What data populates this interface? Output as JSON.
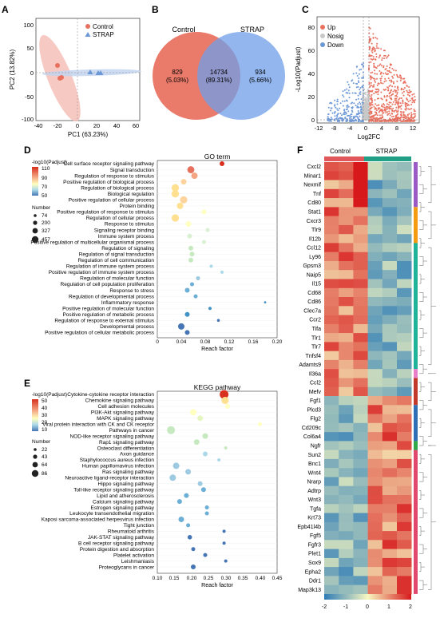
{
  "panels": {
    "A": "A",
    "B": "B",
    "C": "C",
    "D": "D",
    "E": "E",
    "F": "F"
  },
  "pca": {
    "legend": [
      "Control",
      "STRAP"
    ],
    "xlabel": "PC1 (63.23%)",
    "ylabel": "PC2 (13.82%)",
    "xticks": [
      "-40",
      "-20",
      "0",
      "20",
      "40",
      "60"
    ],
    "yticks": [
      "100",
      "50",
      "0",
      "-50",
      "-100"
    ],
    "colors": {
      "control": "#e8705e",
      "strap": "#6c98d8",
      "ellipse_control": "#f6c0b8",
      "ellipse_strap": "#c3d5f0"
    }
  },
  "venn": {
    "left_label": "Control",
    "right_label": "STRAP",
    "left_count": "829",
    "left_pct": "(5.03%)",
    "mid_count": "14734",
    "mid_pct": "(89.31%)",
    "right_count": "934",
    "right_pct": "(5.66%)",
    "colors": {
      "left": "#e8705e",
      "right": "#6f9ee8"
    }
  },
  "volcano": {
    "legend": [
      "Up",
      "Nosig",
      "Down"
    ],
    "ylabel": "-Log10(Padjust)",
    "xlabel": "Log2FC",
    "xticks": [
      "-12",
      "-8",
      "-4",
      "0",
      "4",
      "8",
      "12"
    ],
    "yticks": [
      "0",
      "20",
      "40",
      "60",
      "80"
    ],
    "colors": {
      "up": "#e8705e",
      "nosig": "#c8c8c8",
      "down": "#6c98d8"
    }
  },
  "go": {
    "title": "GO term",
    "xlabel": "Reach factor",
    "xticks": [
      "0",
      "0.04",
      "0.08",
      "0.12",
      "0.16",
      "0.20"
    ],
    "legend_title": "-log10(Padjust)",
    "colorbar_ticks": [
      "110",
      "90",
      "70",
      "50"
    ],
    "size_title": "Number",
    "size_values": [
      "74",
      "200",
      "327",
      "457"
    ],
    "terms": [
      "Cell surface receptor signaling pathway",
      "Signal transduction",
      "Regulation of response to stimulus",
      "Positive regulation of biological process",
      "Regulation of biological process",
      "Biological regulation",
      "Positive regulation of cellular process",
      "Protein binding",
      "Positive regulation of response to stimulus",
      "Regulation of cellular process",
      "Response to stimulus",
      "Signaling receptor binding",
      "Immune system process",
      "Positive regulation of multicellular organismal process",
      "Regulation of signaling",
      "Regulation of signal transduction",
      "Regulation of cell communication",
      "Regulation of immune system process",
      "Positive regulation of immune system process",
      "Regulation of molecular function",
      "Regulation of cell population proliferation",
      "Response to stress",
      "Regulation of developmental process",
      "Inflammatory response",
      "Positive regulation of molecular function",
      "Positive regulation of metabolic process",
      "Regulation of response to external stimulus",
      "Developmental process",
      "Positive regulation of cellular metabolic process"
    ]
  },
  "kegg": {
    "title": "KEGG pathway",
    "xlabel": "Reach factor",
    "xticks": [
      "0.10",
      "0.15",
      "0.20",
      "0.25",
      "0.30",
      "0.35",
      "0.40",
      "0.45"
    ],
    "legend_title": "-log10(Padjust)",
    "colorbar_ticks": [
      "50",
      "40",
      "30",
      "20",
      "10"
    ],
    "size_title": "Number",
    "size_values": [
      "22",
      "43",
      "64",
      "86"
    ],
    "terms": [
      "Cytokine-cytokine receptor interaction",
      "Chemokine signaling pathway",
      "Cell adhesion molecules",
      "PI3K-Akt signaling pathway",
      "MAPK signaling pathway",
      "Viral protein interaction with CK and CK receptor",
      "Pathways in cancer",
      "NOD-like receptor signaling pathway",
      "Rap1 signaling pathway",
      "Osteoclast differentiation",
      "Axon guidance",
      "Staphylococcus aureus infection",
      "Human papillomavirus infection",
      "Ras signaling pathway",
      "Neuroactive ligand-receptor interaction",
      "Hippo signaling pathway",
      "Toll-like receptor signaling pathway",
      "Lipid and atherosclerosis",
      "Calcium signaling pathway",
      "Estrogen signaling pathway",
      "Leukocyte transendothelial migration",
      "Kaposi sarcoma-associated herpesvirus infection",
      "Tight junction",
      "Rheumatoid arthritis",
      "JAK-STAT signaling pathway",
      "B cell receptor signaling pathway",
      "Protein digestion and absorption",
      "Platelet activation",
      "Leishmaniasis",
      "Proteoglycans in cancer"
    ]
  },
  "heatmap": {
    "group_labels": [
      "Control",
      "STRAP"
    ],
    "colorbar_ticks": [
      "-2",
      "-1",
      "0",
      "1",
      "2"
    ],
    "genes": [
      "Cxcl2",
      "Minar1",
      "Nexmif",
      "Tnf",
      "Cd80",
      "Stat1",
      "Cxcr3",
      "Tlr9",
      "Il12b",
      "Ccl12",
      "Ly96",
      "Gpsm3",
      "Naip5",
      "Il15",
      "Cd68",
      "Cd86",
      "Clec7a",
      "Ccr2",
      "Tifa",
      "Tlr1",
      "Tlr7",
      "Tnfsf4",
      "Adamts9",
      "Il36a",
      "Ccl2",
      "Mefv",
      "Fgf1",
      "Plcd3",
      "Flg2",
      "Cd209c",
      "Col6a4",
      "Ngfr",
      "Sun2",
      "Bnc1",
      "Wnt4",
      "Nrarp",
      "Adtrp",
      "Wnt3",
      "Tgfa",
      "Krt73",
      "Epb41l4b",
      "Fgf5",
      "Fgfr3",
      "Plet1",
      "Sox9",
      "Epha2",
      "Ddr1",
      "Map3k13"
    ],
    "cluster_colors": [
      "#9b59c6",
      "#f39c12",
      "#1fb39a",
      "#e97fc9",
      "#c0392b",
      "#2e6fb6",
      "#2ea84a",
      "#e0486e"
    ]
  }
}
